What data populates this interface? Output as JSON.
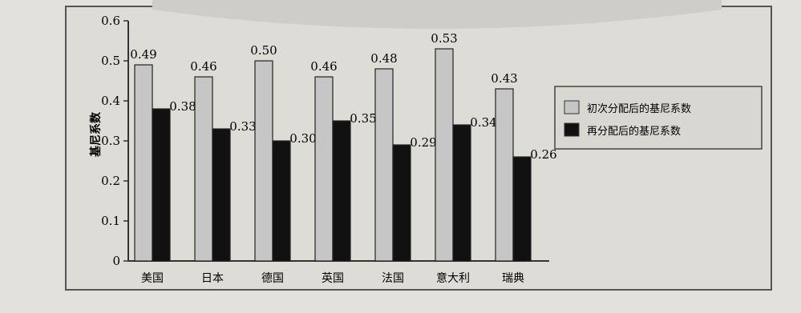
{
  "chart_data": {
    "type": "bar",
    "title": "",
    "ylabel": "基尼系数",
    "ylim": [
      0,
      0.6
    ],
    "yticks": [
      "0",
      "0.1",
      "0.2",
      "0.3",
      "0.4",
      "0.5",
      "0.6"
    ],
    "categories": [
      "美国",
      "日本",
      "德国",
      "英国",
      "法国",
      "意大利",
      "瑞典"
    ],
    "series": [
      {
        "name": "初次分配后的基尼系数",
        "values": [
          0.49,
          0.46,
          0.5,
          0.46,
          0.48,
          0.53,
          0.43
        ],
        "color": "#c6c6c6"
      },
      {
        "name": "再分配后的基尼系数",
        "values": [
          0.38,
          0.33,
          0.3,
          0.35,
          0.29,
          0.34,
          0.26
        ],
        "color": "#111111"
      }
    ],
    "data_labels": [
      [
        "0.49",
        "0.46",
        "0.50",
        "0.46",
        "0.48",
        "0.53",
        "0.43"
      ],
      [
        "0.38",
        "0.33",
        "0.30",
        "0.35",
        "0.29",
        "0.34",
        "0.26"
      ]
    ],
    "grid": false,
    "legend": "right"
  }
}
